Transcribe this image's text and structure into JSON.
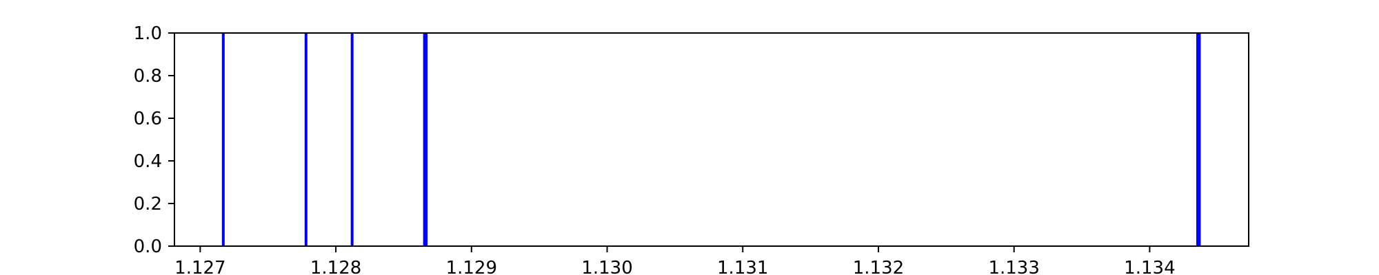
{
  "chart_data": {
    "type": "event-lines",
    "title": "",
    "xlabel": "",
    "ylabel": "",
    "xlim": [
      1.12681,
      1.13473
    ],
    "ylim": [
      0.0,
      1.0
    ],
    "x_ticks": [
      1.127,
      1.128,
      1.129,
      1.13,
      1.131,
      1.132,
      1.133,
      1.134
    ],
    "x_tick_labels": [
      "1.127",
      "1.128",
      "1.129",
      "1.130",
      "1.131",
      "1.132",
      "1.133",
      "1.134"
    ],
    "y_ticks": [
      0.0,
      0.2,
      0.4,
      0.6,
      0.8,
      1.0
    ],
    "y_tick_labels": [
      "0.0",
      "0.2",
      "0.4",
      "0.6",
      "0.8",
      "1.0"
    ],
    "grid": false,
    "events": [
      {
        "x": 1.12717,
        "weight": 1
      },
      {
        "x": 1.12778,
        "weight": 1
      },
      {
        "x": 1.12812,
        "weight": 1
      },
      {
        "x": 1.12866,
        "weight": 2
      },
      {
        "x": 1.13436,
        "weight": 2
      }
    ],
    "line_color": "#0000ff",
    "axis_color": "#000000"
  }
}
